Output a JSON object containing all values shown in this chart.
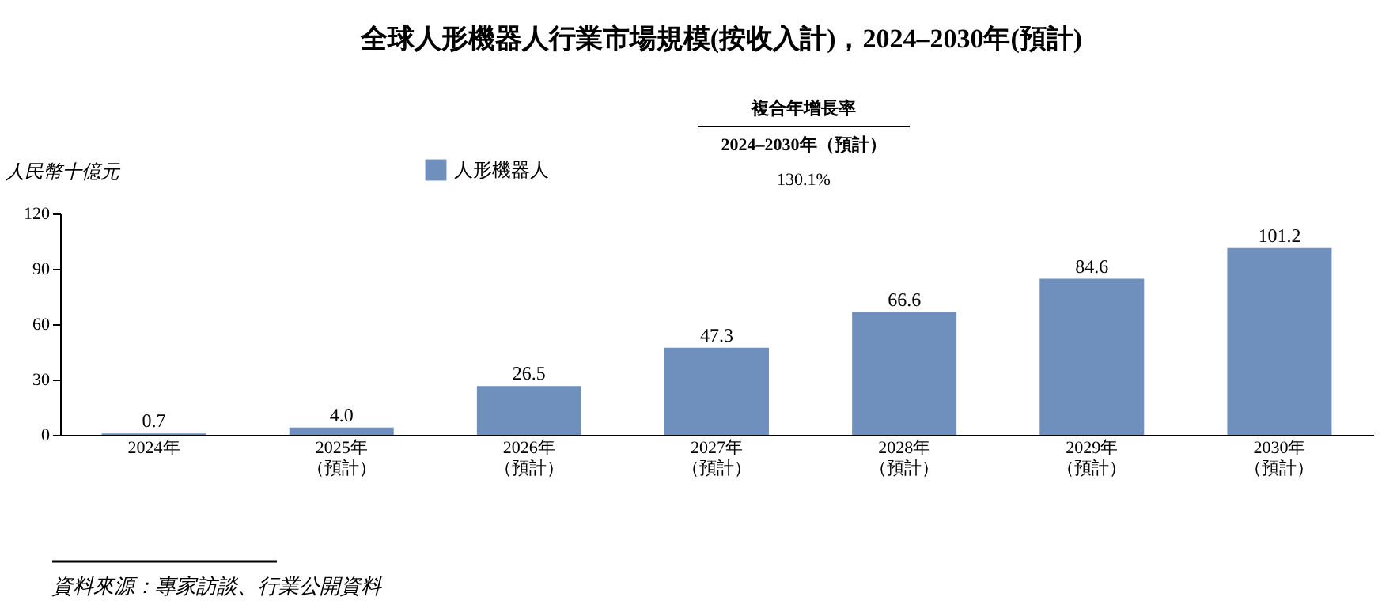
{
  "chart_data": {
    "type": "bar",
    "title": "全球人形機器人行業市場規模(按收入計)，2024–2030年(預計)",
    "ylabel": "人民幣十億元",
    "categories": [
      "2024年",
      "2025年（預計）",
      "2026年（預計）",
      "2027年（預計）",
      "2028年（預計）",
      "2029年（預計）",
      "2030年（預計）"
    ],
    "series": [
      {
        "name": "人形機器人",
        "color": "#6f8fbd",
        "values": [
          0.7,
          4.0,
          26.5,
          47.3,
          66.6,
          84.6,
          101.2
        ],
        "value_labels": [
          "0.7",
          "4.0",
          "26.5",
          "47.3",
          "66.6",
          "84.6",
          "101.2"
        ]
      }
    ],
    "ylim": [
      0,
      120
    ],
    "yticks": [
      0,
      30,
      60,
      90,
      120
    ],
    "grid": false,
    "legend": "top",
    "annotations": [
      "複合年增長率",
      "2024–2030年（預計）",
      "130.1%",
      "資料來源：專家訪談、行業公開資料"
    ]
  }
}
